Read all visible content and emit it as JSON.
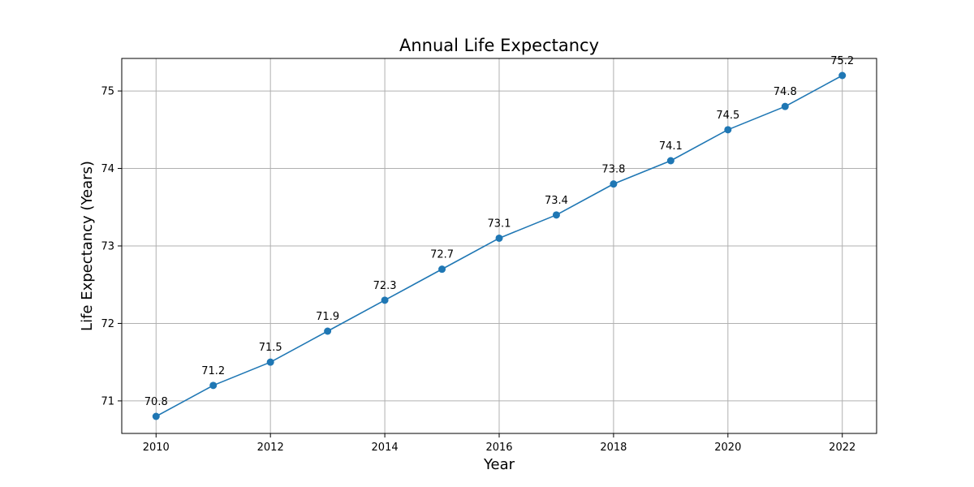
{
  "chart_data": {
    "type": "line",
    "title": "Annual Life Expectancy",
    "xlabel": "Year",
    "ylabel": "Life Expectancy (Years)",
    "x": [
      2010,
      2011,
      2012,
      2013,
      2014,
      2015,
      2016,
      2017,
      2018,
      2019,
      2020,
      2021,
      2022
    ],
    "series": [
      {
        "values": [
          70.8,
          71.2,
          71.5,
          71.9,
          72.3,
          72.7,
          73.1,
          73.4,
          73.8,
          74.1,
          74.5,
          74.8,
          75.2
        ],
        "color": "#1f77b4",
        "marker": "circle"
      }
    ],
    "data_labels": [
      "70.8",
      "71.2",
      "71.5",
      "71.9",
      "72.3",
      "72.7",
      "73.1",
      "73.4",
      "73.8",
      "74.1",
      "74.5",
      "74.8",
      "75.2"
    ],
    "xticks": [
      "2010",
      "2012",
      "2014",
      "2016",
      "2018",
      "2020",
      "2022"
    ],
    "yticks": [
      "71",
      "72",
      "73",
      "74",
      "75"
    ],
    "xlim": [
      2009.4,
      2022.6
    ],
    "ylim": [
      70.58,
      75.42
    ],
    "grid": true,
    "legend": "none",
    "colors": {
      "grid": "#b0b0b0",
      "axis": "#000000"
    }
  }
}
